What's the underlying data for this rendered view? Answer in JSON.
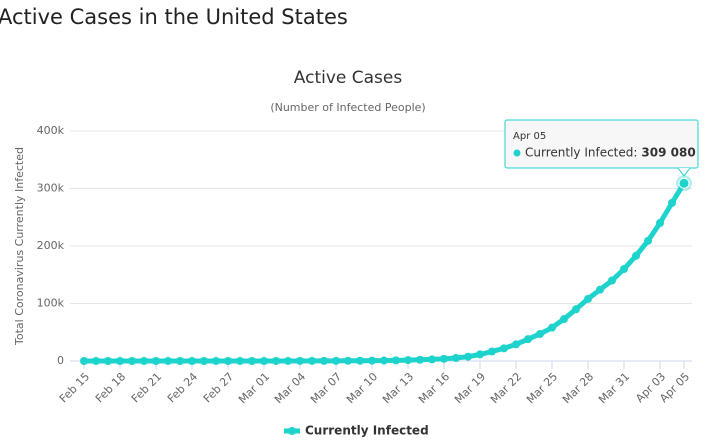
{
  "page_title": "Active Cases in the United States",
  "chart_data": {
    "type": "line",
    "title": "Active Cases",
    "subtitle": "(Number of Infected People)",
    "y_label": "Total Coronavirus Currently Infected",
    "categories": [
      "Feb 15",
      null,
      null,
      "Feb 18",
      null,
      null,
      "Feb 21",
      null,
      null,
      "Feb 24",
      null,
      null,
      "Feb 27",
      null,
      null,
      "Mar 01",
      null,
      null,
      "Mar 04",
      null,
      null,
      "Mar 07",
      null,
      null,
      "Mar 10",
      null,
      null,
      "Mar 13",
      null,
      null,
      "Mar 16",
      null,
      null,
      "Mar 19",
      null,
      null,
      "Mar 22",
      null,
      null,
      "Mar 25",
      null,
      null,
      "Mar 28",
      null,
      null,
      "Mar 31",
      null,
      null,
      "Apr 03",
      null,
      "Apr 05"
    ],
    "series": [
      {
        "name": "Currently Infected",
        "color": "#1fd3cd",
        "values": [
          12,
          12,
          12,
          12,
          12,
          12,
          12,
          12,
          12,
          12,
          12,
          13,
          14,
          15,
          18,
          25,
          40,
          60,
          90,
          140,
          180,
          260,
          340,
          440,
          560,
          800,
          1100,
          1600,
          2100,
          2800,
          3800,
          5200,
          7500,
          11500,
          16500,
          22000,
          29000,
          38000,
          47000,
          58000,
          73000,
          90000,
          108000,
          124000,
          140000,
          160000,
          183000,
          209000,
          240000,
          275000,
          309080
        ]
      }
    ],
    "ylim": [
      0,
      400000
    ],
    "yticks": [
      0,
      {
        "value": 100000,
        "label": "100k"
      },
      {
        "value": 200000,
        "label": "200k"
      },
      {
        "value": 300000,
        "label": "300k"
      },
      {
        "value": 400000,
        "label": "400k"
      }
    ],
    "grid": true,
    "tooltip": {
      "x": "Apr 05",
      "label": "Currently Infected:",
      "value_label": "309 080"
    }
  }
}
